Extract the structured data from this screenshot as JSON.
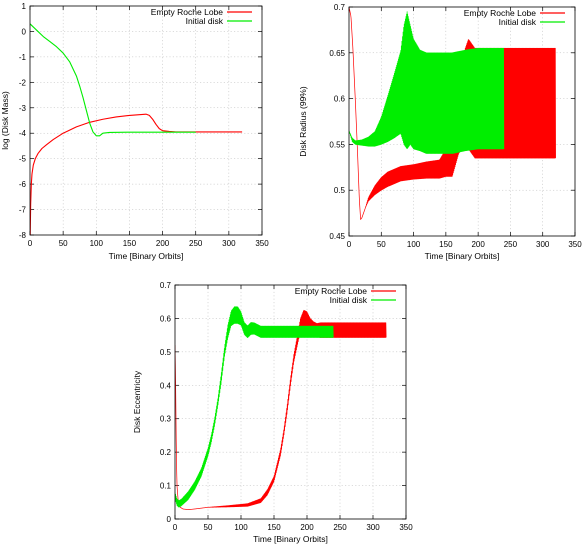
{
  "chart_data": [
    {
      "type": "line",
      "xlabel": "Time [Binary Orbits]",
      "ylabel": "log (Disk Mass)",
      "xlim": [
        0,
        350
      ],
      "ylim": [
        -8,
        1
      ],
      "xticks": [
        "0",
        "50",
        "100",
        "150",
        "200",
        "250",
        "300",
        "350"
      ],
      "yticks": [
        "-8",
        "-7",
        "-6",
        "-5",
        "-4",
        "-3",
        "-2",
        "-1",
        "0",
        "1"
      ],
      "legend_position": "top-right",
      "grid": true,
      "series": [
        {
          "name": "Empty Roche Lobe",
          "color": "#ff0000",
          "x": [
            0.3,
            1,
            2,
            3,
            5,
            8,
            12,
            18,
            25,
            35,
            50,
            70,
            90,
            110,
            130,
            150,
            165,
            175,
            180,
            185,
            190,
            195,
            200,
            210,
            220,
            250,
            280,
            300,
            320
          ],
          "y": [
            -8.0,
            -6.8,
            -6.0,
            -5.6,
            -5.25,
            -5.0,
            -4.8,
            -4.6,
            -4.45,
            -4.25,
            -4.0,
            -3.75,
            -3.57,
            -3.45,
            -3.36,
            -3.3,
            -3.27,
            -3.25,
            -3.3,
            -3.45,
            -3.65,
            -3.82,
            -3.9,
            -3.93,
            -3.95,
            -3.95,
            -3.95,
            -3.95,
            -3.95
          ]
        },
        {
          "name": "Initial disk",
          "color": "#00ee00",
          "x": [
            0,
            10,
            20,
            30,
            40,
            50,
            60,
            70,
            75,
            80,
            85,
            90,
            95,
            100,
            105,
            110,
            120,
            150,
            200,
            250
          ],
          "y": [
            0.3,
            0.05,
            -0.2,
            -0.4,
            -0.6,
            -0.85,
            -1.2,
            -1.75,
            -2.15,
            -2.6,
            -3.1,
            -3.6,
            -3.95,
            -4.1,
            -4.1,
            -4.0,
            -3.97,
            -3.96,
            -3.96,
            -3.96
          ]
        }
      ]
    },
    {
      "type": "line",
      "xlabel": "Time [Binary Orbits]",
      "ylabel": "Disk Radius (99%)",
      "xlim": [
        0,
        350
      ],
      "ylim": [
        0.45,
        0.7
      ],
      "xticks": [
        "0",
        "50",
        "100",
        "150",
        "200",
        "250",
        "300",
        "350"
      ],
      "yticks": [
        "0.45",
        "0.5",
        "0.55",
        "0.6",
        "0.65",
        "0.7"
      ],
      "legend_position": "top-right",
      "grid": true,
      "series": [
        {
          "name": "Empty Roche Lobe",
          "color": "#ff0000",
          "x": [
            0,
            3,
            6,
            10,
            13,
            16,
            18,
            20,
            25,
            30,
            40,
            50,
            60,
            80,
            100,
            120,
            140,
            150,
            160,
            170,
            175,
            180,
            185,
            190,
            195,
            200,
            210,
            220,
            230,
            240,
            250,
            280,
            300,
            320
          ],
          "y": [
            0.7,
            0.69,
            0.655,
            0.595,
            0.545,
            0.49,
            0.468,
            0.47,
            0.48,
            0.49,
            0.5,
            0.507,
            0.512,
            0.518,
            0.52,
            0.522,
            0.523,
            0.53,
            0.54,
            0.575,
            0.59,
            0.6,
            0.605,
            0.6,
            0.595,
            0.595,
            0.595,
            0.595,
            0.595,
            0.595,
            0.595,
            0.595,
            0.595,
            0.595
          ],
          "amplitude": [
            0,
            0,
            0,
            0,
            0,
            0,
            0,
            0,
            0,
            0.002,
            0.005,
            0.007,
            0.008,
            0.008,
            0.008,
            0.009,
            0.01,
            0.015,
            0.025,
            0.035,
            0.045,
            0.055,
            0.06,
            0.06,
            0.06,
            0.06,
            0.06,
            0.06,
            0.06,
            0.06,
            0.06,
            0.06,
            0.06,
            0.06
          ]
        },
        {
          "name": "Initial disk",
          "color": "#00ee00",
          "x": [
            0,
            5,
            10,
            20,
            30,
            40,
            50,
            60,
            70,
            80,
            85,
            90,
            95,
            100,
            110,
            120,
            140,
            160,
            180,
            200,
            220,
            240
          ],
          "y": [
            0.565,
            0.555,
            0.552,
            0.552,
            0.553,
            0.556,
            0.565,
            0.578,
            0.592,
            0.607,
            0.615,
            0.62,
            0.615,
            0.605,
            0.598,
            0.595,
            0.595,
            0.595,
            0.598,
            0.6,
            0.6,
            0.6
          ],
          "amplitude": [
            0,
            0.002,
            0.002,
            0.003,
            0.005,
            0.008,
            0.015,
            0.025,
            0.035,
            0.045,
            0.065,
            0.075,
            0.065,
            0.06,
            0.055,
            0.055,
            0.055,
            0.055,
            0.055,
            0.055,
            0.055,
            0.055
          ]
        }
      ]
    },
    {
      "type": "line",
      "xlabel": "Time [Binary Orbits]",
      "ylabel": "Disk Eccentricity",
      "xlim": [
        0,
        350
      ],
      "ylim": [
        0,
        0.7
      ],
      "xticks": [
        "0",
        "50",
        "100",
        "150",
        "200",
        "250",
        "300",
        "350"
      ],
      "yticks": [
        "0",
        "0.1",
        "0.2",
        "0.3",
        "0.4",
        "0.5",
        "0.6",
        "0.7"
      ],
      "legend_position": "top-right",
      "grid": true,
      "series": [
        {
          "name": "Empty Roche Lobe",
          "color": "#ff0000",
          "x": [
            0,
            1,
            2,
            3,
            5,
            8,
            12,
            20,
            30,
            50,
            80,
            110,
            130,
            140,
            150,
            160,
            165,
            170,
            175,
            180,
            185,
            190,
            195,
            200,
            205,
            210,
            215,
            220,
            230,
            240,
            260,
            280,
            300,
            320
          ],
          "y": [
            0.52,
            0.4,
            0.2,
            0.1,
            0.05,
            0.035,
            0.03,
            0.028,
            0.03,
            0.035,
            0.038,
            0.042,
            0.055,
            0.08,
            0.12,
            0.2,
            0.26,
            0.33,
            0.41,
            0.48,
            0.53,
            0.58,
            0.6,
            0.595,
            0.58,
            0.57,
            0.565,
            0.565,
            0.565,
            0.565,
            0.565,
            0.565,
            0.565,
            0.565
          ],
          "amplitude": [
            0,
            0,
            0,
            0,
            0,
            0,
            0,
            0,
            0,
            0,
            0.002,
            0.004,
            0.006,
            0.008,
            0.008,
            0.01,
            0.01,
            0.012,
            0.012,
            0.012,
            0.015,
            0.02,
            0.025,
            0.025,
            0.02,
            0.02,
            0.02,
            0.022,
            0.022,
            0.022,
            0.022,
            0.022,
            0.022,
            0.022
          ]
        },
        {
          "name": "Initial disk",
          "color": "#00ee00",
          "x": [
            0,
            3,
            6,
            10,
            20,
            30,
            40,
            50,
            55,
            60,
            65,
            70,
            75,
            80,
            85,
            90,
            95,
            100,
            105,
            110,
            115,
            120,
            130,
            150,
            170,
            200,
            240
          ],
          "y": [
            0.07,
            0.05,
            0.045,
            0.05,
            0.07,
            0.1,
            0.14,
            0.2,
            0.24,
            0.29,
            0.35,
            0.42,
            0.5,
            0.56,
            0.6,
            0.61,
            0.61,
            0.6,
            0.57,
            0.56,
            0.57,
            0.57,
            0.56,
            0.56,
            0.56,
            0.56,
            0.56
          ],
          "amplitude": [
            0.01,
            0.01,
            0.01,
            0.01,
            0.012,
            0.012,
            0.012,
            0.012,
            0.012,
            0.012,
            0.012,
            0.015,
            0.015,
            0.02,
            0.022,
            0.025,
            0.025,
            0.02,
            0.018,
            0.018,
            0.018,
            0.017,
            0.017,
            0.017,
            0.017,
            0.017,
            0.017
          ]
        }
      ]
    }
  ]
}
